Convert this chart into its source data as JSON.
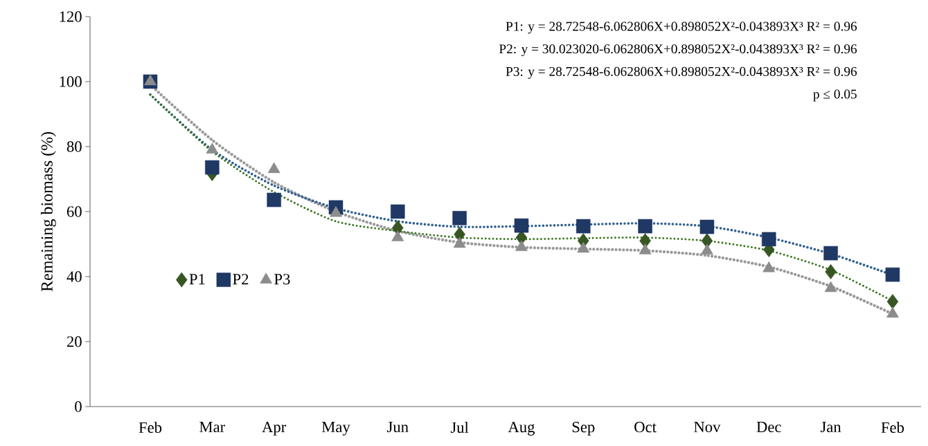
{
  "chart_data": {
    "type": "scatter",
    "ylabel": "Remaining biomass (%)",
    "categories": [
      "Feb",
      "Mar",
      "Apr",
      "May",
      "Jun",
      "Jul",
      "Aug",
      "Sep",
      "Oct",
      "Nov",
      "Dec",
      "Jan",
      "Feb"
    ],
    "ylim": [
      0,
      120
    ],
    "yticks": [
      0,
      20,
      40,
      60,
      80,
      100,
      120
    ],
    "grid": false,
    "legend": "bottom left",
    "series": [
      {
        "name": "P1",
        "color": "#375623",
        "marker": "diamond",
        "values": [
          null,
          71.7,
          null,
          null,
          55,
          53,
          52,
          51,
          51,
          51,
          48.3,
          41.5,
          32.3
        ]
      },
      {
        "name": "P2",
        "color": "#1f3864",
        "marker": "square",
        "values": [
          100,
          73.6,
          63.6,
          61.3,
          60,
          58,
          55.7,
          55.5,
          55.5,
          55.3,
          51.5,
          47.2,
          40.6
        ]
      },
      {
        "name": "P3",
        "color": "#8c8c8c",
        "marker": "triangle",
        "values": [
          100,
          79,
          73,
          59.5,
          52,
          50,
          49,
          48.5,
          48,
          47.9,
          42.5,
          36.4,
          28.5
        ]
      },
      {
        "type": "line",
        "color": "#38761d",
        "marker": "none",
        "line_style": "dotted",
        "values": [
          96,
          78.5,
          66,
          57,
          54,
          52,
          51.5,
          51.8,
          52,
          51,
          48,
          42,
          32.5
        ]
      },
      {
        "type": "line",
        "color": "#2e5f8f",
        "marker": "none",
        "line_style": "dotted",
        "values": [
          96,
          79,
          68,
          61,
          57,
          55.3,
          55.5,
          56,
          56.4,
          55.5,
          52,
          47,
          40.5
        ]
      },
      {
        "type": "line",
        "color": "#999999",
        "marker": "none",
        "line_style": "dotted",
        "values": [
          99,
          82,
          69,
          60,
          54,
          50.5,
          49,
          48.5,
          48,
          46.5,
          43,
          37,
          28.5
        ]
      }
    ],
    "annotations": [
      "P1: y = 28.72548-6.062806X+0.898052X²-0.043893X³   R² = 0.96",
      "P2: y = 30.023020-6.062806X+0.898052X²-0.043893X³ R² = 0.96",
      "P3: y = 28.72548-6.062806X+0.898052X²-0.043893X³  R² = 0.96",
      "p ≤ 0.05"
    ]
  }
}
